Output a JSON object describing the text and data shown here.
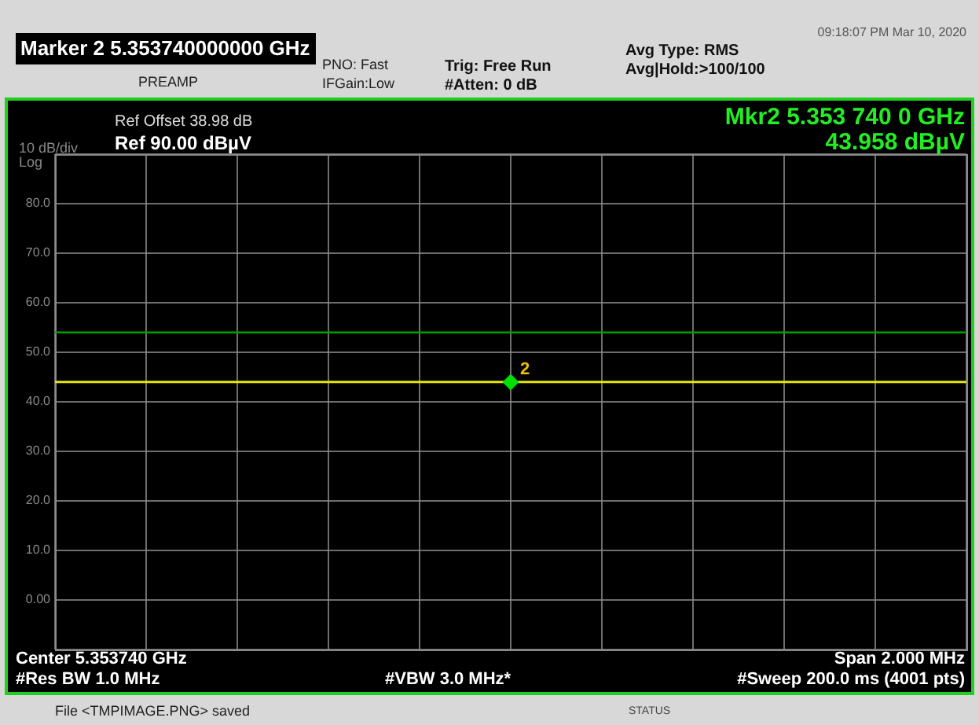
{
  "chart_data": {
    "type": "line",
    "title": "Marker 2 5.353740000000 GHz",
    "categories": [
      null,
      null,
      null,
      null,
      null,
      null,
      null,
      null,
      null,
      null,
      null,
      null,
      null,
      null,
      null,
      null,
      null,
      null,
      null,
      null,
      null
    ],
    "series": [
      {
        "color": "#e6e600",
        "values": [
          44,
          44,
          44,
          44,
          44,
          44,
          44,
          44,
          44,
          44,
          44,
          44,
          44,
          44,
          44,
          44,
          44,
          44,
          44,
          44,
          44
        ]
      },
      {
        "type": "scatter",
        "marker": "diamond",
        "color": "#00e000",
        "values": [
          null,
          null,
          null,
          null,
          null,
          null,
          null,
          null,
          null,
          null,
          43.958,
          null,
          null,
          null,
          null,
          null,
          null,
          null,
          null,
          null,
          null
        ]
      }
    ],
    "ylim": [
      -10,
      90
    ],
    "yticks": [
      {
        "value": -10,
        "label": null
      },
      {
        "value": 0,
        "label": "0.00"
      },
      {
        "value": 10,
        "label": "10.0"
      },
      {
        "value": 20,
        "label": "20.0"
      },
      {
        "value": 30,
        "label": "30.0"
      },
      {
        "value": 40,
        "label": "40.0"
      },
      {
        "value": 50,
        "label": "50.0"
      },
      {
        "value": 60,
        "label": "60.0"
      },
      {
        "value": 70,
        "label": "70.0"
      },
      {
        "value": 80,
        "label": "80.0"
      },
      {
        "value": 90,
        "label": null
      }
    ],
    "grid": true,
    "ref_lines": [
      {
        "axis": "y",
        "value": 54,
        "color": "#00a000"
      }
    ],
    "annotations": [
      "PREAMP",
      "PNO: Fast",
      "IFGain:Low",
      "Trig: Free Run",
      "#Atten: 0 dB",
      "Avg Type: RMS",
      "Avg|Hold:>100/100",
      "09:18:07 PM Mar 10, 2020",
      "Ref Offset 38.98 dB",
      "Ref 90.00 dBµV",
      "10 dB/div",
      "Log",
      "Mkr2 5.353 740 0 GHz",
      "43.958 dBµV",
      "Center 5.353740 GHz",
      "#Res BW 1.0 MHz",
      "#VBW 3.0 MHz*",
      "Span 2.000 MHz",
      "#Sweep  200.0 ms (4001 pts)",
      "File <TMPIMAGE.PNG> saved",
      "STATUS",
      {
        "text": "2",
        "y": 43.958
      }
    ]
  }
}
